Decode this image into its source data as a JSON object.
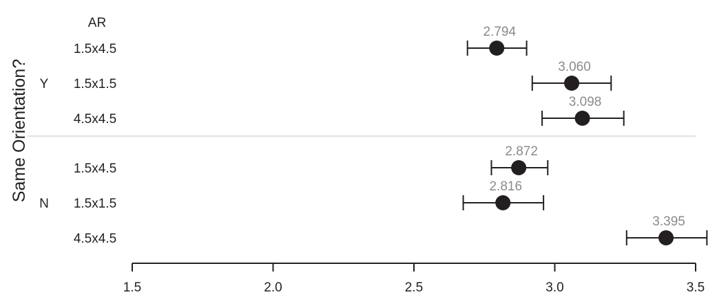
{
  "chart_data": {
    "type": "scatter",
    "ylabel": "Same Orientation?",
    "category_header": "AR",
    "groups": [
      {
        "name": "Y",
        "rows": [
          {
            "label": "1.5x4.5",
            "value": 2.794,
            "value_label": "2.794",
            "lo": 2.69,
            "hi": 2.9
          },
          {
            "label": "1.5x1.5",
            "value": 3.06,
            "value_label": "3.060",
            "lo": 2.92,
            "hi": 3.2
          },
          {
            "label": "4.5x4.5",
            "value": 3.098,
            "value_label": "3.098",
            "lo": 2.955,
            "hi": 3.245
          }
        ]
      },
      {
        "name": "N",
        "rows": [
          {
            "label": "1.5x4.5",
            "value": 2.872,
            "value_label": "2.872",
            "lo": 2.775,
            "hi": 2.975
          },
          {
            "label": "1.5x1.5",
            "value": 2.816,
            "value_label": "2.816",
            "lo": 2.675,
            "hi": 2.96
          },
          {
            "label": "4.5x4.5",
            "value": 3.395,
            "value_label": "3.395",
            "lo": 3.255,
            "hi": 3.54
          }
        ]
      }
    ],
    "xlim": [
      1.5,
      3.5
    ],
    "xticks": [
      1.5,
      2.0,
      2.5,
      3.0,
      3.5
    ],
    "xtick_labels": [
      "1.5",
      "2.0",
      "2.5",
      "3.0",
      "3.5"
    ],
    "grid": false,
    "colors": {
      "point": "#231f20",
      "value_label": "#8a8a8a",
      "separator": "#d9d9d9",
      "axis": "#231f20"
    }
  }
}
